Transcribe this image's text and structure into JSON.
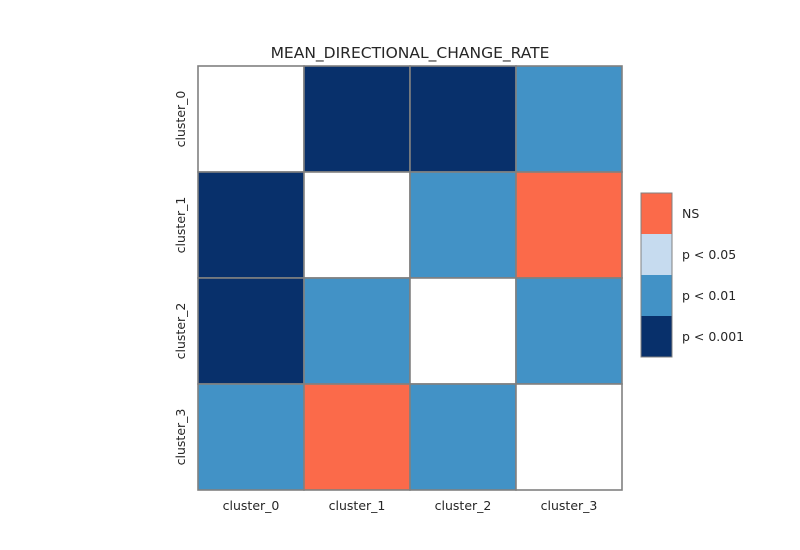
{
  "chart_data": {
    "type": "heatmap",
    "title": "MEAN_DIRECTIONAL_CHANGE_RATE",
    "x_categories": [
      "cluster_0",
      "cluster_1",
      "cluster_2",
      "cluster_3"
    ],
    "y_categories": [
      "cluster_0",
      "cluster_1",
      "cluster_2",
      "cluster_3"
    ],
    "matrix": [
      [
        null,
        "p < 0.001",
        "p < 0.001",
        "p < 0.01"
      ],
      [
        "p < 0.001",
        null,
        "p < 0.01",
        "NS"
      ],
      [
        "p < 0.001",
        "p < 0.01",
        null,
        "p < 0.01"
      ],
      [
        "p < 0.01",
        "NS",
        "p < 0.01",
        null
      ]
    ],
    "legend": [
      {
        "label": "NS",
        "color": "#fb6a4a"
      },
      {
        "label": "p < 0.05",
        "color": "#c6dbef"
      },
      {
        "label": "p < 0.01",
        "color": "#4292c6"
      },
      {
        "label": "p < 0.001",
        "color": "#08306b"
      }
    ],
    "diagonal_color": "#ffffff",
    "cell_border_color": "#808080",
    "legend_placement": "right"
  }
}
